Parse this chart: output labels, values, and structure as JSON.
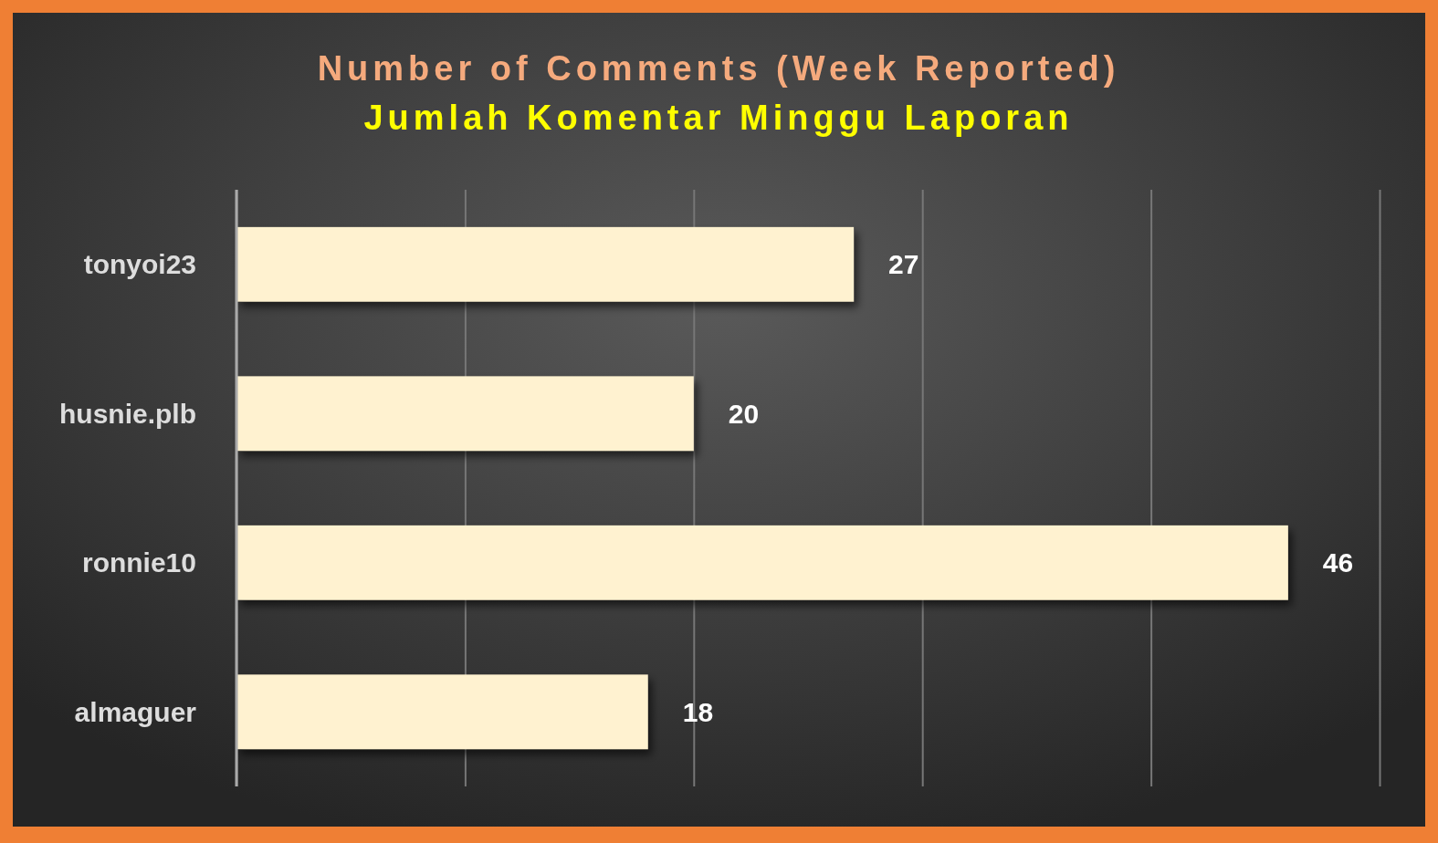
{
  "chart_data": {
    "type": "bar",
    "orientation": "horizontal",
    "title": "Number of Comments (Week Reported)",
    "subtitle": "Jumlah Komentar Minggu Laporan",
    "categories": [
      "tonyoi23",
      "husnie.plb",
      "ronnie10",
      "almaguer"
    ],
    "values": [
      27,
      20,
      46,
      18
    ],
    "color": "#fff2d0",
    "xlim": [
      0,
      50
    ],
    "xticks": [
      {
        "value": 0,
        "label": null
      },
      {
        "value": 10,
        "label": null
      },
      {
        "value": 20,
        "label": null
      },
      {
        "value": 30,
        "label": null
      },
      {
        "value": 40,
        "label": null
      },
      {
        "value": 50,
        "label": null
      }
    ],
    "grid": "x",
    "tick_labels": "y",
    "data_labels": true
  }
}
